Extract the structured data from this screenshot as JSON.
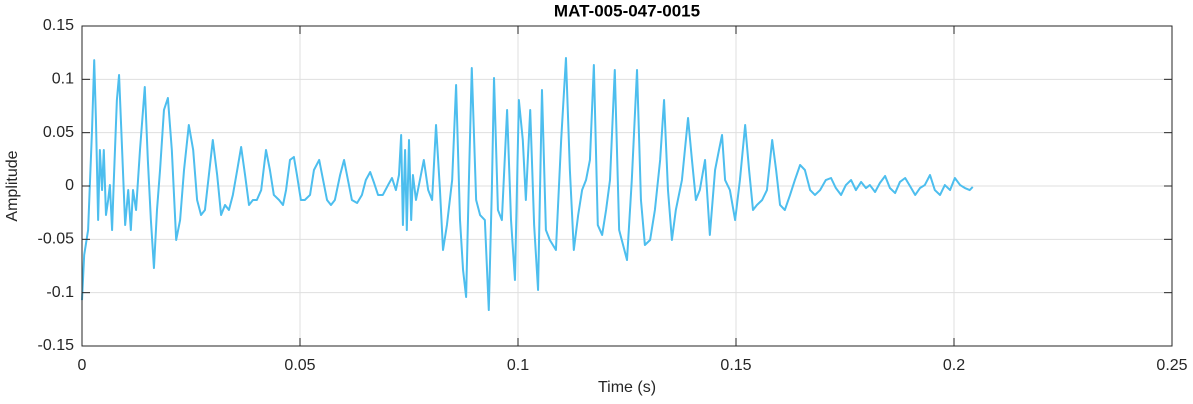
{
  "chart_data": {
    "type": "line",
    "title": "MAT-005-047-0015",
    "xlabel": "Time (s)",
    "ylabel": "Amplitude",
    "color": "#4dbeee",
    "grid": true,
    "xlim": [
      0,
      0.25
    ],
    "xticks": [
      0,
      0.05,
      0.1,
      0.15,
      0.2,
      0.25
    ],
    "ylim": [
      -0.15,
      0.15
    ],
    "yticks": [
      -0.15,
      -0.1,
      -0.05,
      0,
      0.05,
      0.1,
      0.15
    ],
    "x": [
      0,
      0.0005,
      0.0014,
      0.0018,
      0.0023,
      0.0028,
      0.0032,
      0.0037,
      0.0041,
      0.0046,
      0.005,
      0.0055,
      0.006,
      0.0064,
      0.0069,
      0.0073,
      0.008,
      0.0085,
      0.0092,
      0.0099,
      0.0106,
      0.0112,
      0.0117,
      0.0124,
      0.0133,
      0.0144,
      0.0151,
      0.0158,
      0.0165,
      0.0172,
      0.0179,
      0.0188,
      0.0197,
      0.0206,
      0.0216,
      0.0225,
      0.0234,
      0.0245,
      0.0255,
      0.0264,
      0.0273,
      0.0282,
      0.0291,
      0.03,
      0.031,
      0.0319,
      0.0328,
      0.0337,
      0.0346,
      0.0356,
      0.0365,
      0.0374,
      0.0383,
      0.0392,
      0.0401,
      0.0411,
      0.0422,
      0.0431,
      0.044,
      0.0452,
      0.0461,
      0.0468,
      0.0477,
      0.0486,
      0.0493,
      0.0502,
      0.0511,
      0.0523,
      0.0532,
      0.0544,
      0.0553,
      0.0562,
      0.0571,
      0.058,
      0.0592,
      0.0601,
      0.061,
      0.0619,
      0.0631,
      0.0642,
      0.0651,
      0.0661,
      0.067,
      0.0679,
      0.069,
      0.0702,
      0.0711,
      0.072,
      0.0727,
      0.0732,
      0.0736,
      0.0741,
      0.0745,
      0.075,
      0.0755,
      0.0759,
      0.0766,
      0.0775,
      0.0784,
      0.0794,
      0.0803,
      0.0812,
      0.0821,
      0.0828,
      0.0837,
      0.0849,
      0.0858,
      0.0867,
      0.0874,
      0.0881,
      0.0888,
      0.0894,
      0.0904,
      0.0913,
      0.0924,
      0.0933,
      0.094,
      0.0945,
      0.0954,
      0.0963,
      0.0975,
      0.0984,
      0.0993,
      0.1002,
      0.1011,
      0.1018,
      0.1028,
      0.1037,
      0.1046,
      0.1055,
      0.1064,
      0.1073,
      0.1087,
      0.1099,
      0.111,
      0.1119,
      0.1128,
      0.1138,
      0.1147,
      0.1156,
      0.1165,
      0.1174,
      0.1183,
      0.1193,
      0.1202,
      0.1211,
      0.1222,
      0.1232,
      0.1241,
      0.125,
      0.1261,
      0.1273,
      0.1282,
      0.1291,
      0.1303,
      0.1314,
      0.1326,
      0.1335,
      0.1344,
      0.1353,
      0.1362,
      0.1376,
      0.139,
      0.1399,
      0.1408,
      0.1417,
      0.1429,
      0.144,
      0.1452,
      0.1461,
      0.1468,
      0.1475,
      0.1486,
      0.1498,
      0.1509,
      0.1521,
      0.153,
      0.1539,
      0.1548,
      0.156,
      0.1571,
      0.1583,
      0.1592,
      0.1601,
      0.1612,
      0.1624,
      0.1635,
      0.1647,
      0.1658,
      0.167,
      0.1681,
      0.1693,
      0.1706,
      0.1718,
      0.1729,
      0.1741,
      0.1752,
      0.1764,
      0.1775,
      0.1787,
      0.1798,
      0.1807,
      0.1819,
      0.183,
      0.1842,
      0.1853,
      0.1865,
      0.1876,
      0.1888,
      0.1899,
      0.1911,
      0.1922,
      0.1933,
      0.1945,
      0.1956,
      0.1968,
      0.1979,
      0.1991,
      0.2002,
      0.2014,
      0.2025,
      0.2036,
      0.2043
    ],
    "values": [
      -0.107,
      -0.0647,
      -0.0413,
      0.0009,
      0.0525,
      0.118,
      0.0619,
      -0.0319,
      0.0338,
      -0.0038,
      0.0338,
      -0.0272,
      -0.0131,
      0.0009,
      -0.0413,
      0.0056,
      0.0806,
      0.1041,
      0.0338,
      -0.0366,
      -0.0038,
      -0.0413,
      -0.0038,
      -0.0225,
      0.0338,
      0.0928,
      0.0244,
      -0.0319,
      -0.0769,
      -0.0225,
      0.015,
      0.0713,
      0.0825,
      0.0338,
      -0.0506,
      -0.0319,
      0.015,
      0.0572,
      0.0338,
      -0.0131,
      -0.0272,
      -0.0225,
      0.0103,
      0.0431,
      0.0103,
      -0.0272,
      -0.0178,
      -0.0225,
      -0.0084,
      0.015,
      0.0366,
      0.0103,
      -0.0178,
      -0.0131,
      -0.0131,
      -0.0038,
      0.0338,
      0.015,
      -0.0084,
      -0.0131,
      -0.0178,
      -0.0038,
      0.0244,
      0.0272,
      0.0103,
      -0.0131,
      -0.0131,
      -0.0084,
      0.015,
      0.0244,
      0.0056,
      -0.0131,
      -0.0178,
      -0.0131,
      0.0103,
      0.0244,
      0.0056,
      -0.0131,
      -0.0159,
      -0.0084,
      0.0056,
      0.0131,
      0.0028,
      -0.0084,
      -0.0084,
      0.0009,
      0.0075,
      -0.0038,
      0.0103,
      0.0478,
      -0.0366,
      0.0338,
      -0.0413,
      0.0431,
      -0.0319,
      0.0103,
      -0.0131,
      0.0056,
      0.0244,
      -0.0038,
      -0.0131,
      0.0572,
      -0.0038,
      -0.06,
      -0.0366,
      0.0056,
      0.0947,
      -0.0319,
      -0.0788,
      -0.1041,
      0.015,
      0.1106,
      -0.0131,
      -0.0272,
      -0.0319,
      -0.1163,
      -0.0038,
      0.1013,
      -0.0225,
      -0.0319,
      0.0713,
      -0.0319,
      -0.0881,
      0.0806,
      0.0431,
      -0.0131,
      0.0713,
      -0.0366,
      -0.0975,
      0.09,
      -0.0413,
      -0.0506,
      -0.06,
      0.0431,
      0.12,
      0.015,
      -0.06,
      -0.0272,
      -0.0038,
      0.0056,
      0.0244,
      0.1134,
      -0.0366,
      -0.0459,
      -0.0225,
      0.0056,
      0.1088,
      -0.0413,
      -0.0553,
      -0.0694,
      0.0056,
      0.1088,
      -0.0131,
      -0.0553,
      -0.0506,
      -0.0225,
      0.0244,
      0.0806,
      -0.0038,
      -0.0506,
      -0.0225,
      0.0056,
      0.0638,
      0.0244,
      -0.0131,
      -0.0038,
      0.0244,
      -0.0459,
      0.015,
      0.0338,
      0.0478,
      0.0056,
      -0.0038,
      -0.0319,
      0.0056,
      0.0572,
      0.015,
      -0.0225,
      -0.0178,
      -0.0131,
      -0.0038,
      0.0431,
      0.015,
      -0.0178,
      -0.0225,
      -0.0084,
      0.0056,
      0.0197,
      0.015,
      -0.0038,
      -0.0084,
      -0.0038,
      0.0056,
      0.0075,
      -0.0019,
      -0.0084,
      0.0009,
      0.0056,
      -0.0038,
      0.0038,
      -0.0019,
      0.0009,
      -0.0056,
      0.0028,
      0.0094,
      -0.0019,
      -0.0066,
      0.0038,
      0.0075,
      0,
      -0.0084,
      -0.0019,
      0.0009,
      0.0103,
      -0.0038,
      -0.0084,
      0.0009,
      -0.0038,
      0.0075,
      0.0009,
      -0.0019,
      -0.0038,
      -0.0009
    ]
  }
}
